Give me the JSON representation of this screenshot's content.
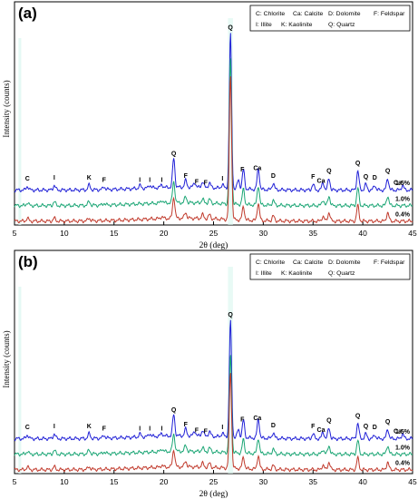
{
  "chart_data": [
    {
      "type": "line",
      "panel_label": "(a)",
      "xlabel": "2θ (deg)",
      "ylabel": "Intensity (counts)",
      "xlim": [
        5,
        45
      ],
      "x_ticks": [
        5,
        10,
        15,
        20,
        25,
        30,
        35,
        40,
        45
      ],
      "y_ticks": "none",
      "legend": [
        "C: Chlorite",
        "Ca: Calcite",
        "D: Dolomite",
        "F: Feldspar",
        "I: Illite",
        "K: Kaolinite",
        "Q: Quartz"
      ],
      "legend_position": "top-right",
      "grid": false,
      "series": [
        {
          "name": "1.5%",
          "color": "#1f1fd6",
          "baseline": 36,
          "peaks": [
            [
              6.3,
              4
            ],
            [
              9.0,
              5
            ],
            [
              12.5,
              5
            ],
            [
              14.0,
              3
            ],
            [
              17.6,
              3
            ],
            [
              18.6,
              3
            ],
            [
              19.8,
              3
            ],
            [
              21.0,
              30
            ],
            [
              22.2,
              7
            ],
            [
              23.1,
              5
            ],
            [
              23.9,
              6
            ],
            [
              24.6,
              5
            ],
            [
              25.9,
              4
            ],
            [
              26.7,
              160
            ],
            [
              27.5,
              9
            ],
            [
              28.0,
              20
            ],
            [
              29.5,
              22
            ],
            [
              31.0,
              7
            ],
            [
              35.0,
              6
            ],
            [
              36.0,
              8
            ],
            [
              36.6,
              12
            ],
            [
              39.5,
              20
            ],
            [
              40.3,
              6
            ],
            [
              41.2,
              5
            ],
            [
              42.5,
              12
            ],
            [
              44.0,
              5
            ]
          ]
        },
        {
          "name": "1.0%",
          "color": "#1aa574",
          "baseline": 20,
          "peaks": [
            [
              6.3,
              3
            ],
            [
              9.0,
              4
            ],
            [
              12.5,
              4
            ],
            [
              14.0,
              2
            ],
            [
              19.8,
              3
            ],
            [
              21.0,
              22
            ],
            [
              22.2,
              6
            ],
            [
              23.9,
              4
            ],
            [
              24.6,
              4
            ],
            [
              26.7,
              150
            ],
            [
              28.0,
              16
            ],
            [
              29.5,
              20
            ],
            [
              31.0,
              5
            ],
            [
              36.0,
              6
            ],
            [
              36.6,
              10
            ],
            [
              39.5,
              18
            ],
            [
              42.5,
              10
            ]
          ]
        },
        {
          "name": "0.4%",
          "color": "#c0392b",
          "baseline": 4,
          "peaks": [
            [
              6.3,
              3
            ],
            [
              9.0,
              3
            ],
            [
              12.5,
              3
            ],
            [
              19.8,
              2
            ],
            [
              21.0,
              22
            ],
            [
              22.2,
              6
            ],
            [
              23.9,
              4
            ],
            [
              24.6,
              4
            ],
            [
              26.7,
              150
            ],
            [
              28.0,
              14
            ],
            [
              29.5,
              18
            ],
            [
              31.0,
              5
            ],
            [
              36.0,
              5
            ],
            [
              36.6,
              9
            ],
            [
              39.5,
              16
            ],
            [
              42.5,
              9
            ]
          ]
        }
      ],
      "peak_annotations": [
        {
          "label": "C",
          "x": 6.3
        },
        {
          "label": "I",
          "x": 9.0
        },
        {
          "label": "K",
          "x": 12.5
        },
        {
          "label": "F",
          "x": 14.0
        },
        {
          "label": "I",
          "x": 17.6
        },
        {
          "label": "I",
          "x": 18.6
        },
        {
          "label": "I",
          "x": 19.8
        },
        {
          "label": "Q",
          "x": 21.0
        },
        {
          "label": "F",
          "x": 22.2
        },
        {
          "label": "F",
          "x": 23.3
        },
        {
          "label": "F",
          "x": 24.2
        },
        {
          "label": "I",
          "x": 25.9
        },
        {
          "label": "Q",
          "x": 26.7
        },
        {
          "label": "F",
          "x": 27.9
        },
        {
          "label": "Ca",
          "x": 29.4
        },
        {
          "label": "D",
          "x": 31.0
        },
        {
          "label": "F",
          "x": 35.0
        },
        {
          "label": "Ca",
          "x": 35.8
        },
        {
          "label": "Q",
          "x": 36.6
        },
        {
          "label": "Q",
          "x": 39.5
        },
        {
          "label": "Q",
          "x": 40.3
        },
        {
          "label": "D",
          "x": 41.2
        },
        {
          "label": "Q",
          "x": 42.5
        },
        {
          "label": "Ca",
          "x": 43.5
        }
      ]
    },
    {
      "type": "line",
      "panel_label": "(b)",
      "xlabel": "2θ (deg)",
      "ylabel": "Intensity (counts)",
      "xlim": [
        5,
        45
      ],
      "x_ticks": [
        5,
        10,
        15,
        20,
        25,
        30,
        35,
        40,
        45
      ],
      "y_ticks": "none",
      "legend": [
        "C: Chlorite",
        "Ca: Calcite",
        "D: Dolomite",
        "F: Feldspar",
        "I: Illite",
        "K: Kaolinite",
        "Q: Quartz"
      ],
      "legend_position": "top-right",
      "grid": false,
      "series": [
        {
          "name": "1.5%",
          "color": "#1f1fd6",
          "baseline": 36,
          "peaks": [
            [
              6.3,
              4
            ],
            [
              9.0,
              5
            ],
            [
              12.5,
              5
            ],
            [
              14.0,
              3
            ],
            [
              17.6,
              3
            ],
            [
              18.6,
              3
            ],
            [
              19.8,
              3
            ],
            [
              21.0,
              22
            ],
            [
              22.2,
              7
            ],
            [
              23.1,
              5
            ],
            [
              23.9,
              6
            ],
            [
              24.6,
              5
            ],
            [
              25.9,
              4
            ],
            [
              26.7,
              120
            ],
            [
              27.5,
              8
            ],
            [
              28.0,
              18
            ],
            [
              29.5,
              20
            ],
            [
              31.0,
              6
            ],
            [
              35.0,
              5
            ],
            [
              36.0,
              7
            ],
            [
              36.6,
              11
            ],
            [
              39.5,
              16
            ],
            [
              40.3,
              5
            ],
            [
              41.2,
              4
            ],
            [
              42.5,
              10
            ],
            [
              44.0,
              5
            ]
          ]
        },
        {
          "name": "1.0%",
          "color": "#1aa574",
          "baseline": 20,
          "peaks": [
            [
              6.3,
              3
            ],
            [
              9.0,
              4
            ],
            [
              12.5,
              4
            ],
            [
              14.0,
              2
            ],
            [
              19.8,
              3
            ],
            [
              21.0,
              18
            ],
            [
              22.2,
              6
            ],
            [
              23.9,
              4
            ],
            [
              24.6,
              4
            ],
            [
              26.7,
              100
            ],
            [
              28.0,
              14
            ],
            [
              29.5,
              16
            ],
            [
              31.0,
              5
            ],
            [
              36.0,
              5
            ],
            [
              36.6,
              9
            ],
            [
              39.5,
              14
            ],
            [
              42.5,
              9
            ]
          ]
        },
        {
          "name": "0.4%",
          "color": "#c0392b",
          "baseline": 4,
          "peaks": [
            [
              6.3,
              3
            ],
            [
              9.0,
              3
            ],
            [
              12.5,
              3
            ],
            [
              19.8,
              2
            ],
            [
              21.0,
              18
            ],
            [
              22.2,
              6
            ],
            [
              23.9,
              4
            ],
            [
              24.6,
              4
            ],
            [
              26.7,
              100
            ],
            [
              28.0,
              12
            ],
            [
              29.5,
              14
            ],
            [
              31.0,
              4
            ],
            [
              36.0,
              5
            ],
            [
              36.6,
              8
            ],
            [
              39.5,
              12
            ],
            [
              42.5,
              8
            ]
          ]
        }
      ],
      "peak_annotations": [
        {
          "label": "C",
          "x": 6.3
        },
        {
          "label": "I",
          "x": 9.0
        },
        {
          "label": "K",
          "x": 12.5
        },
        {
          "label": "F",
          "x": 14.0
        },
        {
          "label": "I",
          "x": 17.6
        },
        {
          "label": "I",
          "x": 18.6
        },
        {
          "label": "I",
          "x": 19.8
        },
        {
          "label": "Q",
          "x": 21.0
        },
        {
          "label": "F",
          "x": 22.2
        },
        {
          "label": "F",
          "x": 23.3
        },
        {
          "label": "F",
          "x": 24.2
        },
        {
          "label": "I",
          "x": 25.9
        },
        {
          "label": "Q",
          "x": 26.7
        },
        {
          "label": "F",
          "x": 27.9
        },
        {
          "label": "Ca",
          "x": 29.4
        },
        {
          "label": "D",
          "x": 31.0
        },
        {
          "label": "F",
          "x": 35.0
        },
        {
          "label": "Ca",
          "x": 35.8
        },
        {
          "label": "Q",
          "x": 36.6
        },
        {
          "label": "Q",
          "x": 39.5
        },
        {
          "label": "Q",
          "x": 40.3
        },
        {
          "label": "D",
          "x": 41.2
        },
        {
          "label": "Q",
          "x": 42.5
        },
        {
          "label": "Ca",
          "x": 43.5
        }
      ]
    }
  ]
}
